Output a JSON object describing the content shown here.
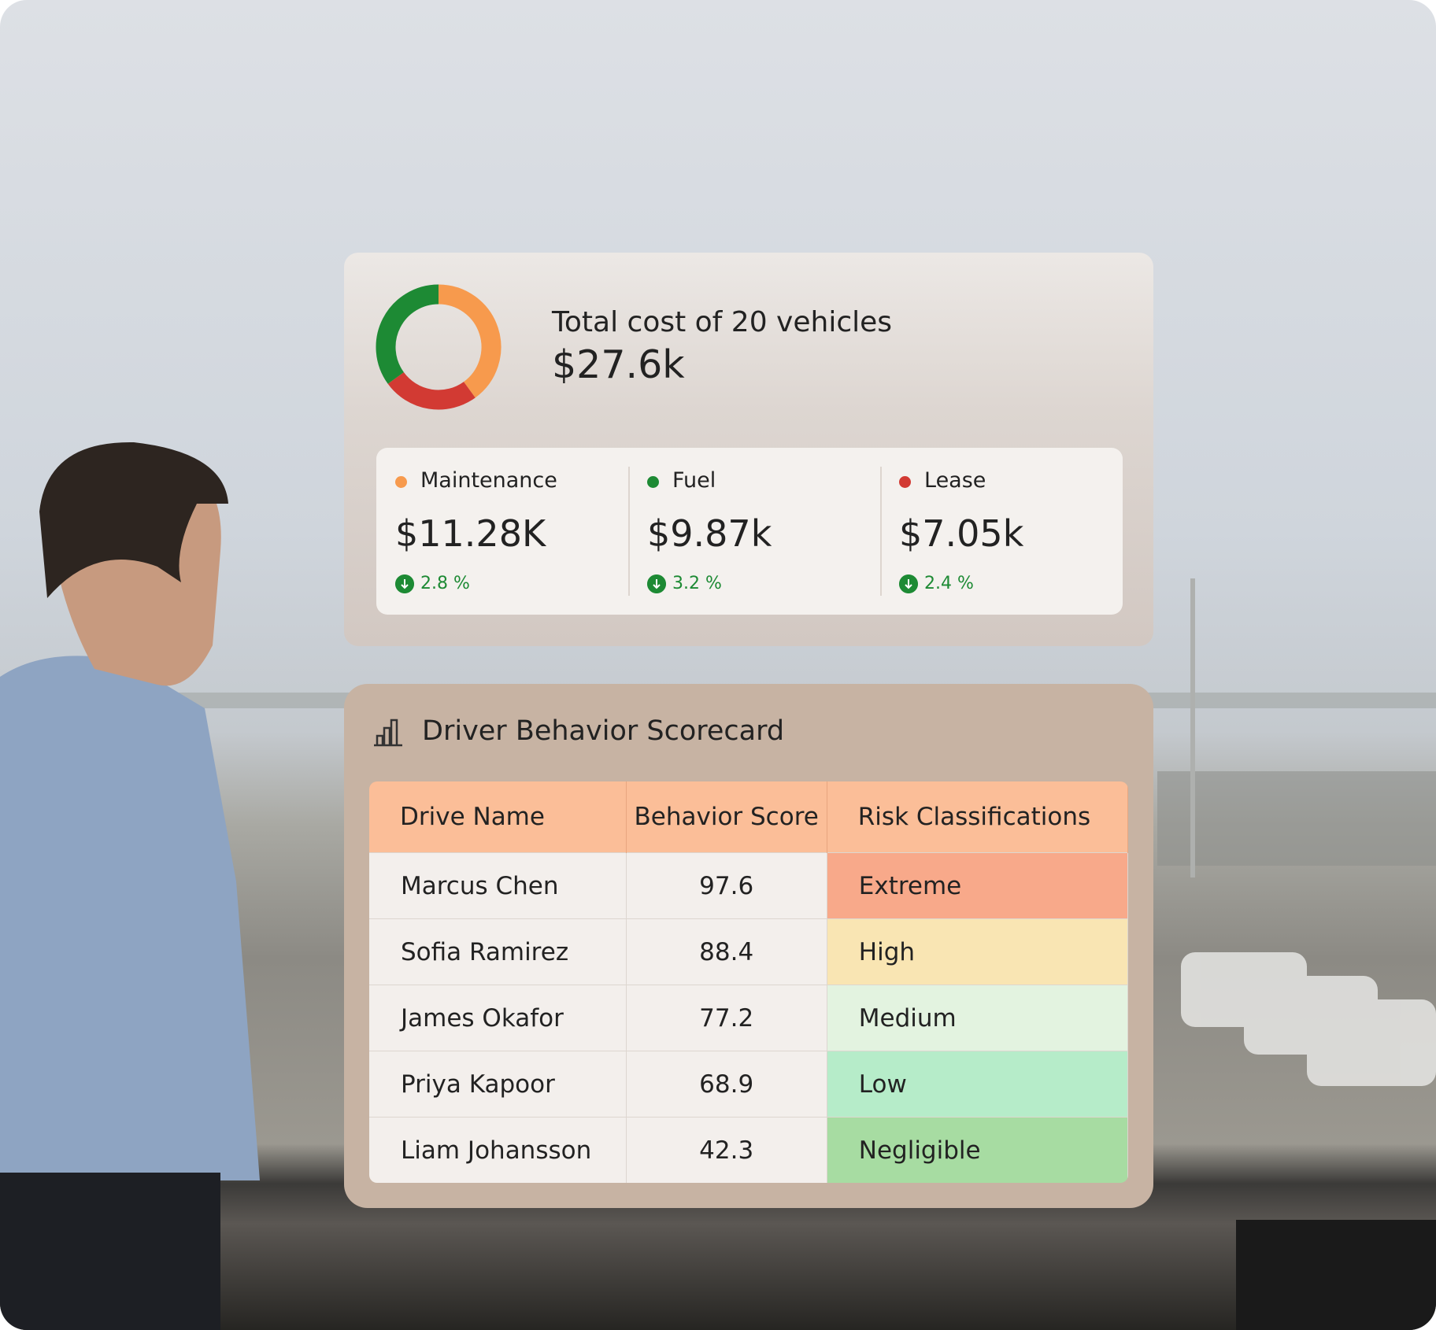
{
  "cost_card": {
    "title": "Total cost of 20 vehicles",
    "total": "$27.6k",
    "items": [
      {
        "name": "Maintenance",
        "color": "#f79a4d",
        "value": 11.28,
        "value_label": "$11.28K",
        "change": "2.8 %"
      },
      {
        "name": "Lease",
        "color": "#d23a33",
        "value": 7.05,
        "value_label": "$7.05k",
        "change": "2.4 %"
      },
      {
        "name": "Fuel",
        "color": "#1d8a34",
        "value": 9.87,
        "value_label": "$9.87k",
        "change": "3.2 %"
      }
    ],
    "display_order": [
      0,
      2,
      1
    ]
  },
  "scorecard": {
    "title": "Driver Behavior Scorecard",
    "columns": [
      "Drive Name",
      "Behavior Score",
      "Risk Classifications"
    ],
    "rows": [
      [
        "Marcus Chen",
        "97.6",
        "Extreme"
      ],
      [
        "Sofia Ramirez",
        "88.4",
        "High"
      ],
      [
        "James Okafor",
        "77.2",
        "Medium"
      ],
      [
        "Priya Kapoor",
        "68.9",
        "Low"
      ],
      [
        "Liam Johansson",
        "42.3",
        "Negligible"
      ]
    ],
    "risk_colors": [
      "#f8a98a",
      "#f9e5b3",
      "#e3f3e0",
      "#b6ecc9",
      "#a7dca2"
    ]
  }
}
